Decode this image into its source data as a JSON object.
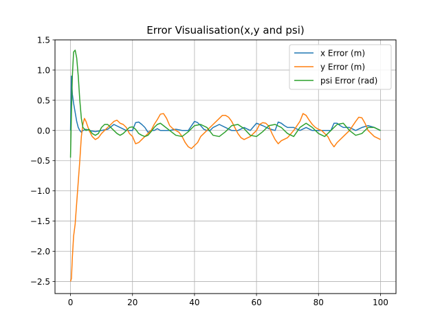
{
  "chart_data": {
    "type": "line",
    "title": "Error Visualisation(x,y and psi)",
    "xlabel": "",
    "ylabel": "",
    "xlim": [
      -5,
      105
    ],
    "ylim": [
      -2.7,
      1.5
    ],
    "xticks": [
      0,
      20,
      40,
      60,
      80,
      100
    ],
    "yticks": [
      1.5,
      1.0,
      0.5,
      0.0,
      -0.5,
      -1.0,
      -1.5,
      -2.0,
      -2.5
    ],
    "xtick_labels": [
      "0",
      "20",
      "40",
      "60",
      "80",
      "100"
    ],
    "ytick_labels": [
      "1.5",
      "1.0",
      "0.5",
      "0.0",
      "−0.5",
      "−1.0",
      "−1.5",
      "−2.0",
      "−2.5"
    ],
    "grid": true,
    "legend_position": "top-right",
    "series": [
      {
        "name": "x Error (m)",
        "color": "#1f77b4",
        "x": [
          0,
          0.3,
          0.6,
          1,
          1.5,
          2,
          2.5,
          3,
          3.5,
          4,
          5,
          6,
          8,
          10,
          12,
          14,
          16,
          18,
          20,
          21,
          22,
          23,
          24,
          25,
          26,
          27,
          28,
          29,
          30,
          32,
          34,
          36,
          38,
          40,
          41,
          42,
          43,
          44,
          45,
          46,
          48,
          50,
          52,
          54,
          56,
          58,
          60,
          62,
          64,
          66,
          67,
          68,
          69,
          70,
          72,
          74,
          76,
          78,
          80,
          82,
          84,
          85,
          86,
          87,
          88,
          90,
          92,
          94,
          96,
          98,
          100
        ],
        "y": [
          0.0,
          0.9,
          0.6,
          0.45,
          0.3,
          0.15,
          0.05,
          0.0,
          -0.03,
          0.0,
          0.02,
          0.0,
          -0.02,
          0.0,
          0.02,
          0.1,
          0.05,
          0.0,
          0.0,
          0.13,
          0.14,
          0.1,
          0.05,
          -0.03,
          0.0,
          0.0,
          0.03,
          0.0,
          0.0,
          0.0,
          0.02,
          0.0,
          0.0,
          0.15,
          0.13,
          0.08,
          0.02,
          0.0,
          0.0,
          0.05,
          0.1,
          0.05,
          0.0,
          0.0,
          0.05,
          0.0,
          0.12,
          0.08,
          0.03,
          0.0,
          0.14,
          0.12,
          0.08,
          0.05,
          0.05,
          0.0,
          0.05,
          0.0,
          0.0,
          0.0,
          0.0,
          0.12,
          0.12,
          0.08,
          0.05,
          0.05,
          0.0,
          0.05,
          0.08,
          0.05,
          0.0
        ]
      },
      {
        "name": "y Error (m)",
        "color": "#ff7f0e",
        "x": [
          0,
          0.3,
          0.6,
          1,
          1.5,
          2,
          3,
          3.5,
          4,
          4.5,
          5,
          6,
          7,
          8,
          9,
          10,
          12,
          14,
          15,
          16,
          17,
          18,
          19,
          20,
          21,
          22,
          23,
          24,
          25,
          26,
          27,
          28,
          29,
          30,
          31,
          32,
          33,
          34,
          35,
          36,
          37,
          38,
          39,
          40,
          41,
          42,
          44,
          46,
          48,
          49,
          50,
          51,
          52,
          53,
          54,
          55,
          56,
          58,
          59,
          60,
          61,
          62,
          63,
          64,
          65,
          66,
          67,
          68,
          70,
          72,
          74,
          75,
          76,
          77,
          78,
          79,
          80,
          81,
          82,
          83,
          84,
          85,
          86,
          88,
          90,
          92,
          93,
          94,
          95,
          96,
          98,
          100
        ],
        "y": [
          -2.5,
          -2.45,
          -2.1,
          -1.75,
          -1.55,
          -1.2,
          -0.5,
          -0.1,
          0.1,
          0.2,
          0.15,
          0.0,
          -0.1,
          -0.15,
          -0.12,
          -0.05,
          0.05,
          0.15,
          0.17,
          0.12,
          0.1,
          0.05,
          -0.05,
          -0.1,
          -0.22,
          -0.2,
          -0.15,
          -0.1,
          -0.05,
          0.0,
          0.1,
          0.18,
          0.27,
          0.28,
          0.2,
          0.08,
          0.03,
          0.0,
          -0.03,
          -0.1,
          -0.2,
          -0.27,
          -0.3,
          -0.25,
          -0.2,
          -0.1,
          0.0,
          0.1,
          0.2,
          0.25,
          0.25,
          0.22,
          0.15,
          0.05,
          -0.05,
          -0.12,
          -0.15,
          -0.1,
          -0.05,
          0.0,
          0.1,
          0.13,
          0.12,
          0.07,
          -0.05,
          -0.15,
          -0.22,
          -0.17,
          -0.12,
          0.0,
          0.15,
          0.28,
          0.25,
          0.17,
          0.1,
          0.05,
          0.02,
          0.0,
          -0.05,
          -0.1,
          -0.2,
          -0.27,
          -0.2,
          -0.1,
          0.0,
          0.15,
          0.22,
          0.21,
          0.12,
          0.0,
          -0.1,
          -0.15
        ]
      },
      {
        "name": "psi Error (rad)",
        "color": "#2ca02c",
        "x": [
          0,
          0.3,
          0.6,
          1,
          1.5,
          2,
          2.5,
          3,
          3.5,
          4,
          5,
          6,
          7,
          8,
          9,
          10,
          11,
          12,
          13,
          14,
          15,
          16,
          17,
          18,
          19,
          20,
          21,
          22,
          23,
          24,
          25,
          26,
          27,
          28,
          29,
          30,
          32,
          34,
          36,
          38,
          40,
          42,
          44,
          46,
          48,
          50,
          52,
          54,
          56,
          58,
          60,
          62,
          64,
          66,
          68,
          70,
          72,
          74,
          76,
          78,
          80,
          82,
          84,
          86,
          88,
          90,
          92,
          94,
          96,
          98,
          100
        ],
        "y": [
          -0.45,
          0.3,
          0.9,
          1.3,
          1.33,
          1.2,
          0.9,
          0.5,
          0.2,
          0.05,
          0.0,
          0.02,
          -0.05,
          -0.08,
          -0.05,
          0.05,
          0.1,
          0.1,
          0.05,
          0.0,
          -0.05,
          -0.08,
          -0.05,
          0.0,
          0.05,
          0.06,
          0.02,
          -0.05,
          -0.08,
          -0.1,
          -0.08,
          -0.02,
          0.05,
          0.1,
          0.12,
          0.08,
          0.0,
          -0.08,
          -0.1,
          -0.02,
          0.08,
          0.1,
          0.05,
          -0.08,
          -0.1,
          -0.02,
          0.08,
          0.1,
          0.03,
          -0.08,
          -0.1,
          -0.02,
          0.08,
          0.1,
          0.05,
          -0.05,
          -0.1,
          0.05,
          0.12,
          0.05,
          -0.05,
          -0.1,
          0.0,
          0.1,
          0.12,
          0.0,
          -0.08,
          -0.05,
          0.05,
          0.05,
          0.0
        ]
      }
    ]
  }
}
